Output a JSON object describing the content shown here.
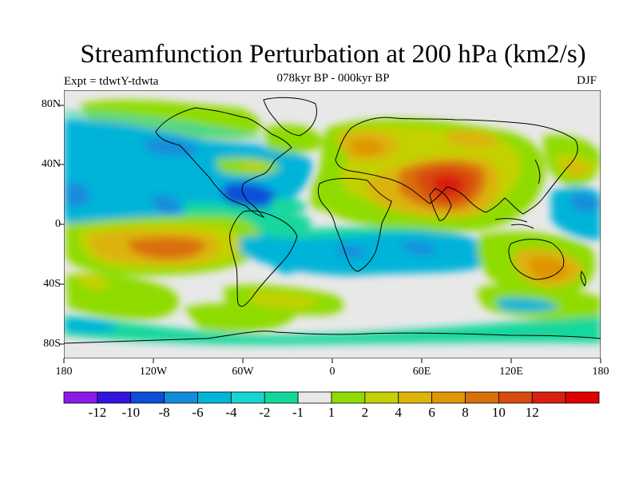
{
  "title": "Streamfunction Perturbation at 200 hPa (km2/s)",
  "subtitle": "078kyr BP - 000kyr BP",
  "experiment": "Expt = tdwtY-tdwta",
  "season": "DJF",
  "map": {
    "lat_labels": [
      "80N",
      "40N",
      "0",
      "40S",
      "80S"
    ],
    "lon_labels": [
      "180",
      "120W",
      "60W",
      "0",
      "60E",
      "120E",
      "180"
    ],
    "lon_range": [
      -180,
      180
    ],
    "lat_range": [
      -90,
      90
    ]
  },
  "colorbar": {
    "colors": [
      "#8a1be8",
      "#3313e0",
      "#0a50d8",
      "#128cdc",
      "#05b4d9",
      "#16d4d2",
      "#15d79c",
      "#e8e8e8",
      "#8fdb05",
      "#c3d105",
      "#dcb309",
      "#de9506",
      "#d9700a",
      "#d84a0f",
      "#d81f10",
      "#e00000"
    ],
    "labels": [
      "-12",
      "-10",
      "-8",
      "-6",
      "-4",
      "-2",
      "-1",
      "1",
      "2",
      "4",
      "6",
      "8",
      "10",
      "12"
    ]
  }
}
